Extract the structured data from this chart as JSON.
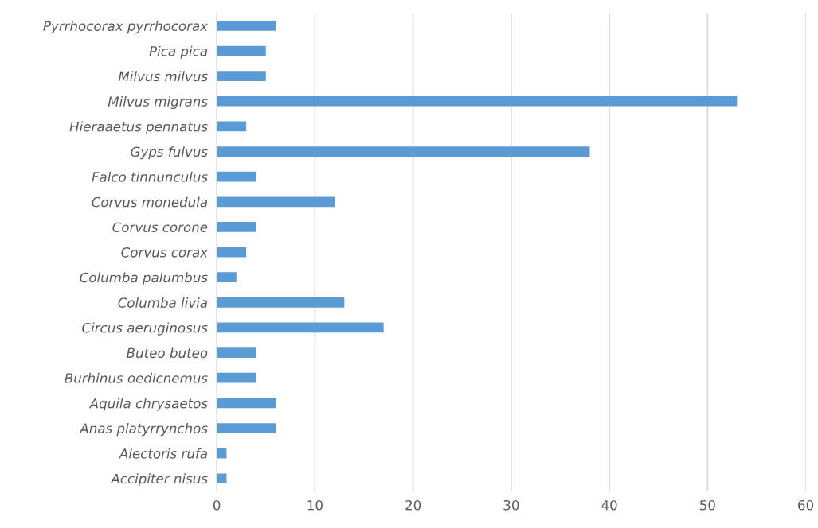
{
  "chart_data": {
    "type": "bar",
    "orientation": "horizontal",
    "categories": [
      "Pyrrhocorax pyrrhocorax",
      "Pica pica",
      "Milvus milvus",
      "Milvus migrans",
      "Hieraaetus pennatus",
      "Gyps fulvus",
      "Falco tinnunculus",
      "Corvus monedula",
      "Corvus corone",
      "Corvus corax",
      "Columba palumbus",
      "Columba livia",
      "Circus aeruginosus",
      "Buteo buteo",
      "Burhinus oedicnemus",
      "Aquila chrysaetos",
      "Anas platyrrynchos",
      "Alectoris rufa",
      "Accipiter nisus"
    ],
    "values": [
      6,
      5,
      5,
      53,
      3,
      38,
      4,
      12,
      4,
      3,
      2,
      13,
      17,
      4,
      4,
      6,
      6,
      1,
      1
    ],
    "color": "#5b9bd5",
    "xlim": [
      0,
      60
    ],
    "xticks": [
      0,
      10,
      20,
      30,
      40,
      50,
      60
    ],
    "grid": "x",
    "legend": false
  }
}
